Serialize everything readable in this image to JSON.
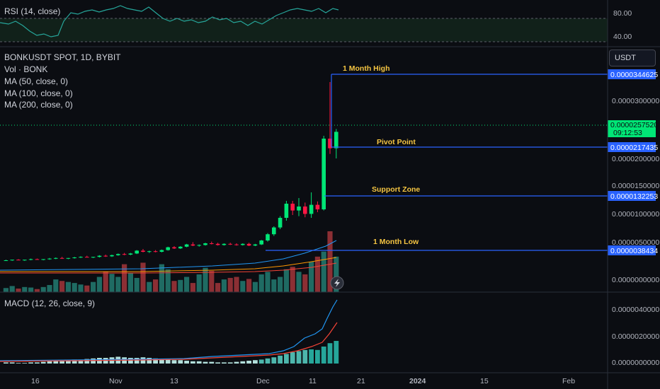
{
  "rsi": {
    "title": "RSI (14, close)",
    "ticks": [
      "80.00",
      "40.00"
    ]
  },
  "main": {
    "symbol": "BONKUSDT SPOT, 1D, BYBIT",
    "indicators": [
      "Vol · BONK",
      "MA (50, close, 0)",
      "MA (100, close, 0)",
      "MA (200, close, 0)"
    ],
    "currency": "USDT",
    "price_ticks": [
      "0.0000300000",
      "0.0000200000",
      "0.0000150000",
      "0.0000100000",
      "0.0000050000",
      "0.0000000000"
    ],
    "levels": [
      {
        "label": "1 Month High",
        "price": "0.0000344625",
        "color": "#2962ff"
      },
      {
        "label": "Pivot Point",
        "price": "0.0000217435",
        "color": "#2962ff"
      },
      {
        "label": "Support Zone",
        "price": "0.0000132253",
        "color": "#2962ff"
      },
      {
        "label": "1 Month Low",
        "price": "0.0000038434",
        "color": "#2962ff"
      }
    ],
    "current": {
      "price": "0.0000257520",
      "countdown": "09:12:53",
      "color": "#00e676"
    }
  },
  "macd": {
    "title": "MACD (12, 26, close, 9)",
    "ticks": [
      "0.0000040000",
      "0.0000020000",
      "0.0000000000"
    ]
  },
  "time_axis": [
    "16",
    "Nov",
    "13",
    "Dec",
    "11",
    "21",
    "2024",
    "15",
    "Feb"
  ],
  "chart_data": {
    "type": "candlestick",
    "title": "BONKUSDT SPOT, 1D, BYBIT",
    "candles": [
      [
        3e-06,
        3.1e-06,
        2.9e-06,
        3e-06
      ],
      [
        3e-06,
        3.1e-06,
        2.9e-06,
        3.1e-06
      ],
      [
        3.1e-06,
        3.2e-06,
        3e-06,
        3e-06
      ],
      [
        3e-06,
        3.1e-06,
        2.9e-06,
        3.1e-06
      ],
      [
        3.1e-06,
        3.3e-06,
        3e-06,
        3.2e-06
      ],
      [
        3.2e-06,
        3.3e-06,
        3.1e-06,
        3.1e-06
      ],
      [
        3.1e-06,
        3.2e-06,
        3e-06,
        3.2e-06
      ],
      [
        3.2e-06,
        3.4e-06,
        3.1e-06,
        3.3e-06
      ],
      [
        3.3e-06,
        3.5e-06,
        3.2e-06,
        3.4e-06
      ],
      [
        3.4e-06,
        3.6e-06,
        3.3e-06,
        3.3e-06
      ],
      [
        3.3e-06,
        3.4e-06,
        3.2e-06,
        3.4e-06
      ],
      [
        3.4e-06,
        3.6e-06,
        3.3e-06,
        3.5e-06
      ],
      [
        3.5e-06,
        3.7e-06,
        3.4e-06,
        3.6e-06
      ],
      [
        3.6e-06,
        3.8e-06,
        3.5e-06,
        3.5e-06
      ],
      [
        3.5e-06,
        3.6e-06,
        3.4e-06,
        3.6e-06
      ],
      [
        3.6e-06,
        3.9e-06,
        3.5e-06,
        3.8e-06
      ],
      [
        3.8e-06,
        4e-06,
        3.6e-06,
        3.7e-06
      ],
      [
        3.7e-06,
        4e-06,
        3.6e-06,
        3.9e-06
      ],
      [
        3.9e-06,
        4.2e-06,
        3.8e-06,
        4.1e-06
      ],
      [
        4.1e-06,
        4.3e-06,
        3.9e-06,
        4e-06
      ],
      [
        4e-06,
        4.3e-06,
        3.9e-06,
        4.2e-06
      ],
      [
        4.2e-06,
        4.8e-06,
        4.1e-06,
        4.7e-06
      ],
      [
        4.7e-06,
        5e-06,
        4.4e-06,
        4.5e-06
      ],
      [
        4.5e-06,
        4.7e-06,
        4.3e-06,
        4.6e-06
      ],
      [
        4.6e-06,
        4.8e-06,
        4.4e-06,
        4.5e-06
      ],
      [
        4.5e-06,
        4.9e-06,
        4.4e-06,
        4.8e-06
      ],
      [
        4.8e-06,
        5.4e-06,
        4.7e-06,
        5.3e-06
      ],
      [
        5.3e-06,
        5.5e-06,
        5e-06,
        5.1e-06
      ],
      [
        5.1e-06,
        5.5e-06,
        5e-06,
        5.4e-06
      ],
      [
        5.4e-06,
        5.9e-06,
        5.3e-06,
        5.8e-06
      ],
      [
        5.8e-06,
        6.2e-06,
        5.5e-06,
        5.6e-06
      ],
      [
        5.6e-06,
        5.8e-06,
        5.4e-06,
        5.7e-06
      ],
      [
        5.7e-06,
        6.1e-06,
        5.6e-06,
        6e-06
      ],
      [
        6e-06,
        6.3e-06,
        5.8e-06,
        5.9e-06
      ],
      [
        5.9e-06,
        6.1e-06,
        5.6e-06,
        5.7e-06
      ],
      [
        5.7e-06,
        6e-06,
        5.6e-06,
        5.9e-06
      ],
      [
        5.9e-06,
        6.1e-06,
        5.7e-06,
        5.8e-06
      ],
      [
        5.8e-06,
        6e-06,
        5.6e-06,
        5.7e-06
      ],
      [
        5.7e-06,
        6e-06,
        5.6e-06,
        5.9e-06
      ],
      [
        5.9e-06,
        6.1e-06,
        5.5e-06,
        5.6e-06
      ],
      [
        5.6e-06,
        5.9e-06,
        5.5e-06,
        5.8e-06
      ],
      [
        5.8e-06,
        6.6e-06,
        5.7e-06,
        6.5e-06
      ],
      [
        6.5e-06,
        7.8e-06,
        6.3e-06,
        7.6e-06
      ],
      [
        7.6e-06,
        9e-06,
        7.3e-06,
        8.8e-06
      ],
      [
        8.8e-06,
        1.08e-05,
        8.5e-06,
        1.05e-05
      ],
      [
        1.05e-05,
        1.35e-05,
        1e-05,
        1.3e-05
      ],
      [
        1.3e-05,
        1.35e-05,
        1.1e-05,
        1.18e-05
      ],
      [
        1.18e-05,
        1.4e-05,
        1.08e-05,
        1.25e-05
      ],
      [
        1.25e-05,
        1.32e-05,
        1.06e-05,
        1.12e-05
      ],
      [
        1.12e-05,
        1.5e-05,
        1.05e-05,
        1.28e-05
      ],
      [
        1.28e-05,
        1.34e-05,
        1.15e-05,
        1.2e-05
      ],
      [
        1.2e-05,
        2.5e-05,
        1.18e-05,
        2.45e-05
      ],
      [
        2.45e-05,
        3.45e-05,
        2.18e-05,
        2.28e-05
      ],
      [
        2.28e-05,
        2.62e-05,
        2.1e-05,
        2.57e-05
      ]
    ],
    "volume": [
      8,
      12,
      7,
      10,
      9,
      6,
      10,
      14,
      25,
      22,
      20,
      18,
      15,
      13,
      20,
      30,
      40,
      36,
      30,
      55,
      38,
      28,
      58,
      20,
      25,
      55,
      45,
      22,
      24,
      30,
      18,
      35,
      48,
      42,
      18,
      25,
      28,
      30,
      22,
      26,
      20,
      35,
      40,
      25,
      30,
      45,
      50,
      40,
      35,
      60,
      70,
      80,
      120,
      70
    ],
    "ma50": [
      2.9,
      2.95,
      3.0,
      3.05,
      3.1,
      3.15,
      3.2,
      3.25,
      3.3,
      3.35,
      3.4,
      3.45,
      3.5,
      3.55,
      3.6,
      3.65,
      3.7,
      3.75,
      3.8,
      3.85,
      3.9,
      3.95,
      4.0,
      4.05,
      4.1,
      4.15,
      4.2,
      4.3,
      4.4,
      4.5,
      4.6,
      4.7,
      4.8,
      4.9,
      5.0,
      5.1,
      5.2,
      5.3,
      5.4,
      5.5,
      5.6,
      5.8,
      6.0,
      6.3,
      6.6,
      7.0,
      7.4,
      7.8,
      8.2,
      8.6,
      9.0,
      9.6,
      10.4,
      11.2
    ],
    "macd_hist": [
      0.1,
      0.1,
      0.05,
      0.05,
      0.1,
      0.1,
      0.15,
      0.2,
      0.25,
      0.3,
      0.3,
      0.35,
      0.35,
      0.4,
      0.45,
      0.5,
      0.5,
      0.55,
      0.6,
      0.55,
      0.5,
      0.5,
      0.55,
      0.5,
      0.45,
      0.4,
      0.35,
      0.3,
      0.3,
      0.25,
      0.2,
      0.2,
      0.15,
      0.15,
      0.1,
      0.1,
      0.1,
      0.15,
      0.2,
      0.25,
      0.3,
      0.35,
      0.45,
      0.55,
      0.7,
      0.85,
      1.0,
      1.1,
      1.2,
      1.25,
      1.2,
      1.5,
      1.8,
      2.0
    ],
    "ylim": [
      0,
      4e-05
    ],
    "legend": "top-left"
  }
}
